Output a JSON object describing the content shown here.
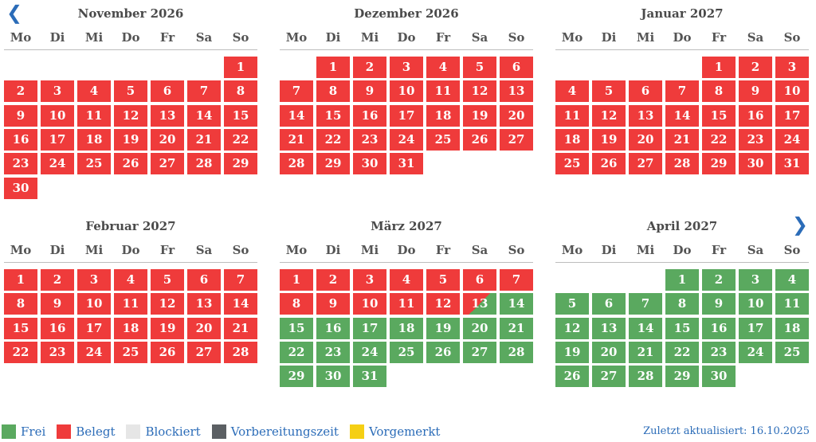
{
  "nav": {
    "prev": "❮",
    "next": "❯"
  },
  "weekdays": [
    "Mo",
    "Di",
    "Mi",
    "Do",
    "Fr",
    "Sa",
    "So"
  ],
  "colors": {
    "frei": "#5aa95f",
    "belegt": "#ef3b3b",
    "blockiert": "#e6e6e6",
    "vorbereitungszeit": "#5b5f63",
    "vorgemerkt": "#f5cf14"
  },
  "months": [
    {
      "title": "November 2026",
      "offset": 6,
      "days": 30,
      "freeFrom": null,
      "splitDay": null
    },
    {
      "title": "Dezember 2026",
      "offset": 1,
      "days": 31,
      "freeFrom": null,
      "splitDay": null
    },
    {
      "title": "Januar 2027",
      "offset": 4,
      "days": 31,
      "freeFrom": null,
      "splitDay": null
    },
    {
      "title": "Februar 2027",
      "offset": 0,
      "days": 28,
      "freeFrom": null,
      "splitDay": null
    },
    {
      "title": "März 2027",
      "offset": 0,
      "days": 31,
      "freeFrom": 14,
      "splitDay": 13
    },
    {
      "title": "April 2027",
      "offset": 3,
      "days": 30,
      "freeFrom": 1,
      "splitDay": null
    }
  ],
  "legend": [
    {
      "key": "frei",
      "label": "Frei"
    },
    {
      "key": "belegt",
      "label": "Belegt"
    },
    {
      "key": "blockiert",
      "label": "Blockiert"
    },
    {
      "key": "vorbereitungszeit",
      "label": "Vorbereitungszeit"
    },
    {
      "key": "vorgemerkt",
      "label": "Vorgemerkt"
    }
  ],
  "updated": "Zuletzt aktualisiert: 16.10.2025"
}
